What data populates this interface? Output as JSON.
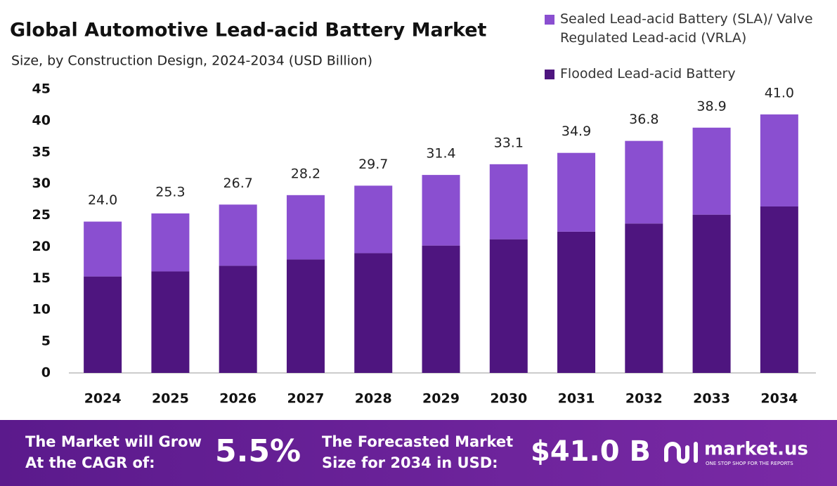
{
  "chart_data": {
    "type": "stacked_bar",
    "title": "Global Automotive Lead-acid Battery Market",
    "subtitle": "Size, by Construction Design, 2024-2034 (USD Billion)",
    "categories": [
      "2024",
      "2025",
      "2026",
      "2027",
      "2028",
      "2029",
      "2030",
      "2031",
      "2032",
      "2033",
      "2034"
    ],
    "series": [
      {
        "name": "Sealed Lead-acid Battery (SLA)/ Valve Regulated Lead-acid (VRLA)",
        "color": "#8a4fd0",
        "values": [
          8.7,
          9.2,
          9.7,
          10.2,
          10.7,
          11.2,
          11.9,
          12.5,
          13.1,
          13.8,
          14.6
        ]
      },
      {
        "name": "Flooded Lead-acid Battery",
        "color": "#4e157f",
        "values": [
          15.3,
          16.1,
          17.0,
          18.0,
          19.0,
          20.2,
          21.2,
          22.4,
          23.7,
          25.1,
          26.4
        ]
      }
    ],
    "totals": {
      "values": [
        24,
        25.3,
        26.7,
        28.2,
        29.7,
        31.4,
        33.1,
        34.9,
        36.8,
        38.9,
        41
      ],
      "value_labels": [
        "24.0",
        "25.3",
        "26.7",
        "28.2",
        "29.7",
        "31.4",
        "33.1",
        "34.9",
        "36.8",
        "38.9",
        "41.0"
      ]
    },
    "ylim": [
      0,
      45
    ],
    "yticks": [
      0,
      5,
      10,
      15,
      20,
      25,
      30,
      35,
      40,
      45
    ],
    "grid": false,
    "legend": "top-right"
  },
  "footer": {
    "cagr_text": [
      "The Market will Grow",
      "At the CAGR of:"
    ],
    "cagr_value": "5.5%",
    "forecast_text": [
      "The Forecasted Market",
      "Size for 2034 in USD:"
    ],
    "forecast_value": "$41.0 B",
    "brand": "market.us",
    "tagline": "ONE STOP SHOP FOR THE REPORTS"
  }
}
